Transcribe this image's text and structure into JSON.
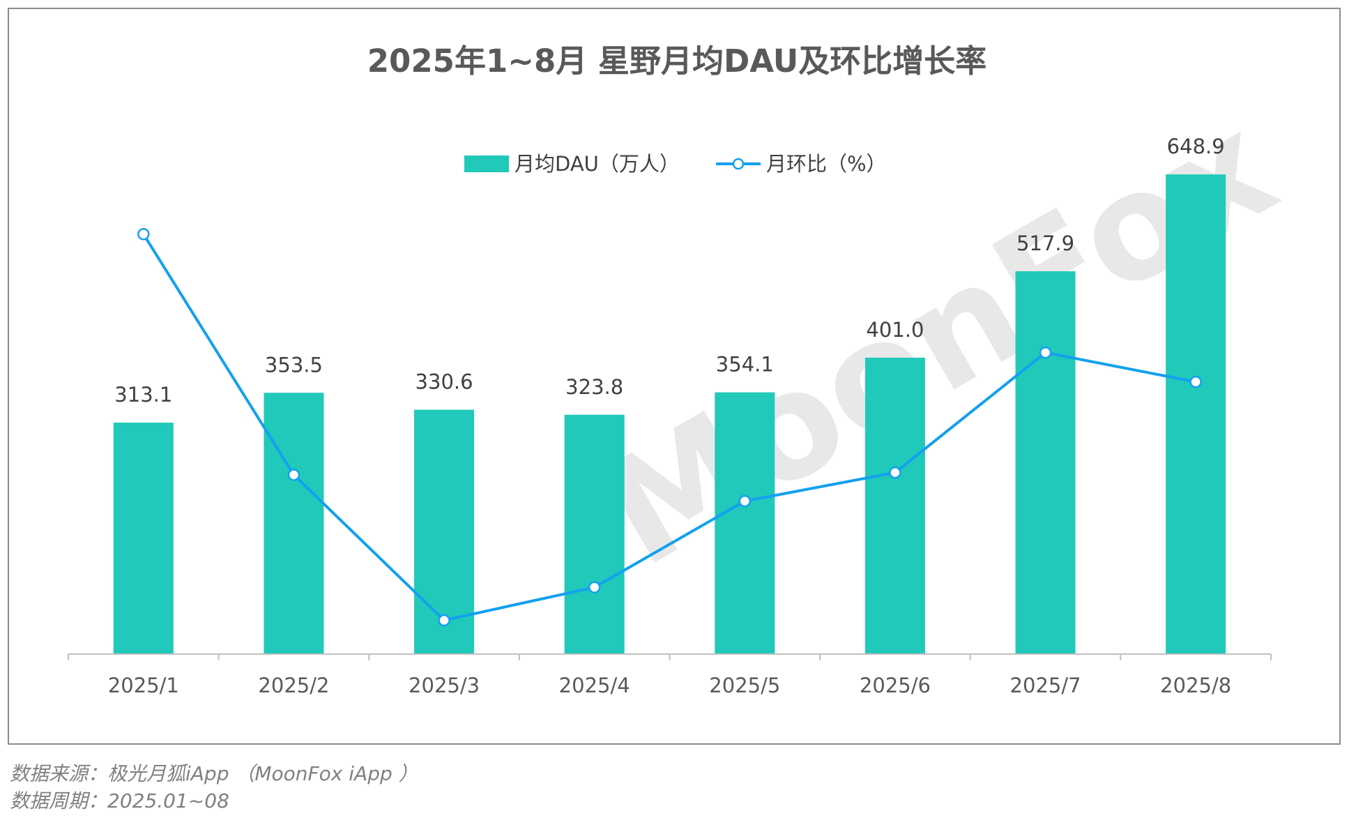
{
  "watermark": "MoonFox",
  "colors": {
    "bar": "#20c9ba",
    "line": "#14a0ee",
    "axis": "#bfbfbf",
    "marker_fill": "#ffffff"
  },
  "chart_data": {
    "type": "bar",
    "title": "2025年1~8月 星野月均DAU及环比增长率",
    "categories": [
      "2025/1",
      "2025/2",
      "2025/3",
      "2025/4",
      "2025/5",
      "2025/6",
      "2025/7",
      "2025/8"
    ],
    "series": [
      {
        "name": "月均DAU（万人）",
        "type": "bar",
        "values": [
          313.1,
          353.5,
          330.6,
          323.8,
          354.1,
          401.0,
          517.9,
          648.9
        ],
        "labels": [
          "313.1",
          "353.5",
          "330.6",
          "323.8",
          "354.1",
          "401.0",
          "517.9",
          "648.9"
        ]
      },
      {
        "name": "月环比（%）",
        "type": "line",
        "values": [
          45.0,
          12.9,
          -6.5,
          -2.1,
          9.4,
          13.2,
          29.2,
          25.3
        ]
      }
    ],
    "ylim": [
      0,
      700
    ],
    "y2lim": [
      -11,
      58
    ],
    "legend": "top-center",
    "grid": false
  },
  "footer": {
    "source": "数据来源：极光月狐iApp （MoonFox iApp ）",
    "period": "数据周期：2025.01~08"
  }
}
